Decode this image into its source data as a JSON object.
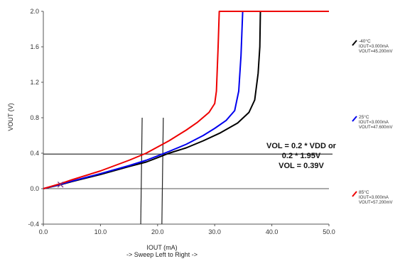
{
  "chart_data": {
    "type": "line",
    "title": "",
    "xlabel": "IOUT (mA)",
    "xlabel_sub": "-> Sweep Left to Right ->",
    "ylabel": "VOUT (V)",
    "xlim": [
      0,
      50
    ],
    "ylim": [
      -0.4,
      2.0
    ],
    "x_ticks": [
      "0.0",
      "10.0",
      "20.0",
      "30.0",
      "40.0",
      "50.0"
    ],
    "y_ticks": [
      "-0.4",
      "0.0",
      "0.4",
      "0.8",
      "1.2",
      "1.6",
      "2.0"
    ],
    "grid": false,
    "legend_position": "right",
    "series": [
      {
        "name": "-40°C",
        "detail": [
          "IOUT=3.000mA",
          "VOUT=45.200mV"
        ],
        "color": "#000000",
        "points": [
          [
            0,
            0
          ],
          [
            3,
            0.045
          ],
          [
            5,
            0.08
          ],
          [
            10,
            0.16
          ],
          [
            15,
            0.25
          ],
          [
            18,
            0.3
          ],
          [
            20,
            0.35
          ],
          [
            22,
            0.4
          ],
          [
            25,
            0.46
          ],
          [
            28,
            0.54
          ],
          [
            31,
            0.63
          ],
          [
            34,
            0.74
          ],
          [
            36,
            0.86
          ],
          [
            37,
            1.0
          ],
          [
            37.6,
            1.3
          ],
          [
            37.9,
            1.6
          ],
          [
            38,
            2.0
          ]
        ]
      },
      {
        "name": "25°C",
        "detail": [
          "IOUT=3.000mA",
          "VOUT=47.600mV"
        ],
        "color": "#0000ee",
        "points": [
          [
            0,
            0
          ],
          [
            3,
            0.048
          ],
          [
            5,
            0.085
          ],
          [
            10,
            0.17
          ],
          [
            15,
            0.26
          ],
          [
            18,
            0.32
          ],
          [
            20,
            0.37
          ],
          [
            22,
            0.42
          ],
          [
            25,
            0.5
          ],
          [
            28,
            0.6
          ],
          [
            30,
            0.68
          ],
          [
            32,
            0.77
          ],
          [
            33.5,
            0.88
          ],
          [
            34.2,
            1.1
          ],
          [
            34.6,
            1.5
          ],
          [
            34.9,
            2.0
          ]
        ]
      },
      {
        "name": "85°C",
        "detail": [
          "IOUT=3.000mA",
          "VOUT=57.200mV"
        ],
        "color": "#ee0000",
        "points": [
          [
            0,
            0
          ],
          [
            3,
            0.057
          ],
          [
            5,
            0.1
          ],
          [
            10,
            0.2
          ],
          [
            15,
            0.32
          ],
          [
            18,
            0.4
          ],
          [
            20,
            0.47
          ],
          [
            22,
            0.54
          ],
          [
            25,
            0.66
          ],
          [
            27,
            0.75
          ],
          [
            29,
            0.86
          ],
          [
            30,
            0.96
          ],
          [
            30.3,
            1.1
          ],
          [
            30.6,
            1.6
          ],
          [
            30.8,
            2.0
          ],
          [
            50,
            2.0
          ]
        ]
      }
    ],
    "reference_lines": {
      "horizontal_y": 0.39,
      "vertical_x": [
        17.3,
        21.0
      ]
    },
    "marker": {
      "x": 3.0,
      "y": 0.05,
      "symbol": "×",
      "color": "#7a2a7a"
    },
    "annotation": [
      "VOL = 0.2 * VDD or",
      "0.2 * 1.95V",
      "VOL = 0.39V"
    ]
  }
}
